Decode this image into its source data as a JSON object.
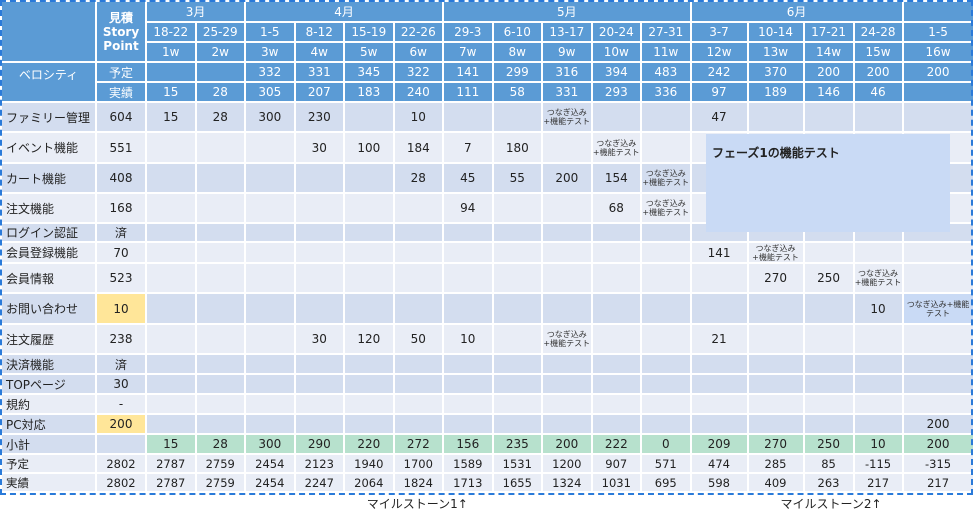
{
  "header": {
    "estimate_label": "見積\nStory\nPoint",
    "estimate_lines": [
      "見積",
      "Story",
      "Point"
    ],
    "months": [
      {
        "label": "3月",
        "span": 2
      },
      {
        "label": "4月",
        "span": 4
      },
      {
        "label": "5月",
        "span": 5
      },
      {
        "label": "6月",
        "span": 4
      },
      {
        "label": "",
        "span": 1
      }
    ],
    "weeks": [
      "18-22",
      "25-29",
      "1-5",
      "8-12",
      "15-19",
      "22-26",
      "29-3",
      "6-10",
      "13-17",
      "20-24",
      "27-31",
      "3-7",
      "10-14",
      "17-21",
      "24-28",
      "1-5"
    ],
    "week_numbers": [
      "1w",
      "2w",
      "3w",
      "4w",
      "5w",
      "6w",
      "7w",
      "8w",
      "9w",
      "10w",
      "11w",
      "12w",
      "13w",
      "14w",
      "15w",
      "16w"
    ]
  },
  "velocity": {
    "label": "ベロシティ",
    "plan_label": "予定",
    "actual_label": "実績",
    "plan": [
      "",
      "",
      "332",
      "331",
      "345",
      "322",
      "141",
      "299",
      "316",
      "394",
      "483",
      "242",
      "370",
      "200",
      "200",
      "200"
    ],
    "actual": [
      "15",
      "28",
      "305",
      "207",
      "183",
      "240",
      "111",
      "58",
      "331",
      "293",
      "336",
      "97",
      "189",
      "146",
      "46",
      ""
    ]
  },
  "note_text": "つなぎ込み+機能テスト",
  "features": [
    {
      "name": "ファミリー管理",
      "sp": "604",
      "tone": "dark",
      "cells": [
        "15",
        "28",
        "300",
        "230",
        "",
        "10",
        "",
        "",
        "NOTE",
        "",
        "",
        "47",
        "",
        "",
        "",
        ""
      ]
    },
    {
      "name": "イベント機能",
      "sp": "551",
      "tone": "light",
      "comment_col": 4,
      "cells": [
        "",
        "",
        "",
        "30",
        "100",
        "184",
        "7",
        "180",
        "",
        "NOTE",
        "",
        "",
        "",
        "",
        "",
        ""
      ]
    },
    {
      "name": "カート機能",
      "sp": "408",
      "tone": "dark",
      "cells": [
        "",
        "",
        "",
        "",
        "",
        "28",
        "45",
        "55",
        "200",
        "154",
        "NOTE",
        "",
        "",
        "",
        "",
        ""
      ]
    },
    {
      "name": "注文機能",
      "sp": "168",
      "tone": "light",
      "cells": [
        "",
        "",
        "",
        "",
        "",
        "",
        "94",
        "",
        "",
        "68",
        "NOTE",
        "",
        "",
        "",
        "",
        ""
      ]
    },
    {
      "name": "ログイン認証",
      "sp": "済",
      "tone": "dark",
      "cells": [
        "",
        "",
        "",
        "",
        "",
        "",
        "",
        "",
        "",
        "",
        "",
        "",
        "",
        "",
        "",
        ""
      ]
    },
    {
      "name": "会員登録機能",
      "sp": "70",
      "tone": "light",
      "cells": [
        "",
        "",
        "",
        "",
        "",
        "",
        "",
        "",
        "",
        "",
        "",
        "141",
        "NOTE",
        "",
        "",
        ""
      ]
    },
    {
      "name": "会員情報",
      "sp": "523",
      "tone": "light",
      "cells": [
        "",
        "",
        "",
        "",
        "",
        "",
        "",
        "",
        "",
        "",
        "",
        "",
        "270",
        "250",
        "NOTE",
        ""
      ]
    },
    {
      "name": "お問い合わせ",
      "sp": "10",
      "tone": "dark",
      "sp_highlight": "#ffe699",
      "highlight_col": 15,
      "cells": [
        "",
        "",
        "",
        "",
        "",
        "",
        "",
        "",
        "",
        "",
        "",
        "",
        "",
        "",
        "10",
        "NOTE"
      ]
    },
    {
      "name": "注文履歴",
      "sp": "238",
      "tone": "light",
      "comment_col": 4,
      "cells": [
        "",
        "",
        "",
        "30",
        "120",
        "50",
        "10",
        "",
        "NOTE",
        "",
        "",
        "21",
        "",
        "",
        "",
        ""
      ]
    },
    {
      "name": "決済機能",
      "sp": "済",
      "tone": "dark",
      "cells": [
        "",
        "",
        "",
        "",
        "",
        "",
        "",
        "",
        "",
        "",
        "",
        "",
        "",
        "",
        "",
        ""
      ]
    },
    {
      "name": "TOPページ",
      "sp": "30",
      "tone": "dark",
      "cells": [
        "",
        "",
        "",
        "",
        "",
        "",
        "",
        "",
        "",
        "",
        "",
        "",
        "",
        "",
        "",
        ""
      ]
    },
    {
      "name": "規約",
      "sp": "-",
      "tone": "light",
      "cells": [
        "",
        "",
        "",
        "",
        "",
        "",
        "",
        "",
        "",
        "",
        "",
        "",
        "",
        "",
        "",
        ""
      ]
    },
    {
      "name": "PC対応",
      "sp": "200",
      "tone": "dark",
      "sp_highlight": "#ffe699",
      "cells": [
        "",
        "",
        "",
        "",
        "",
        "",
        "",
        "",
        "",
        "",
        "",
        "",
        "",
        "",
        "",
        "200"
      ]
    }
  ],
  "subtotal": {
    "label": "小計",
    "values": [
      "15",
      "28",
      "300",
      "290",
      "220",
      "272",
      "156",
      "235",
      "200",
      "222",
      "0",
      "209",
      "270",
      "250",
      "10",
      "200"
    ]
  },
  "remaining": {
    "plan_label": "予定",
    "plan_total": "2802",
    "plan": [
      "2787",
      "2759",
      "2454",
      "2123",
      "1940",
      "1700",
      "1589",
      "1531",
      "1200",
      "907",
      "571",
      "474",
      "285",
      "85",
      "-115",
      "-315"
    ],
    "actual_label": "実績",
    "actual_total": "2802",
    "actual": [
      "2787",
      "2759",
      "2454",
      "2247",
      "2064",
      "1824",
      "1713",
      "1655",
      "1324",
      "1031",
      "695",
      "598",
      "409",
      "263",
      "217",
      "217"
    ]
  },
  "milestones": [
    {
      "label": "マイルストーン1↑",
      "span": 11
    },
    {
      "label": "マイルストーン2↑",
      "span": 5
    }
  ],
  "overlay_note": "フェーズ1の機能テスト",
  "colors": {
    "header": "#5b9bd5",
    "row_dark": "#d3ddef",
    "row_light": "#e9edf6",
    "highlight": "#ffe699",
    "subtotal": "#b7e1cd",
    "note_box": "#c9daf5",
    "selection": "#2a7ad9"
  }
}
